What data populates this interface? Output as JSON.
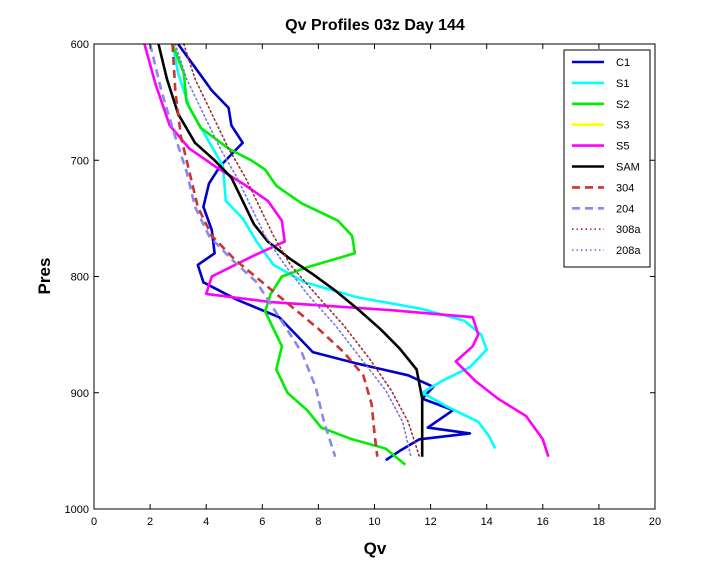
{
  "chart_data": {
    "type": "line",
    "title": "Qv Profiles 03z Day 144",
    "xlabel": "Qv",
    "ylabel": "Pres",
    "xlim": [
      0,
      20
    ],
    "ylim": [
      600,
      1000
    ],
    "y_reversed": true,
    "grid": false,
    "legend_position": "top-right",
    "x_ticks": [
      "0",
      "2",
      "4",
      "6",
      "8",
      "10",
      "12",
      "14",
      "16",
      "18",
      "20"
    ],
    "y_ticks": [
      "600",
      "700",
      "800",
      "900",
      "1000"
    ],
    "series": [
      {
        "name": "C1",
        "color": "#0000cc",
        "style": "solid",
        "points": [
          [
            3.0,
            600
          ],
          [
            3.6,
            620
          ],
          [
            4.2,
            640
          ],
          [
            4.8,
            655
          ],
          [
            4.9,
            670
          ],
          [
            5.3,
            685
          ],
          [
            4.9,
            695
          ],
          [
            4.5,
            705
          ],
          [
            4.1,
            720
          ],
          [
            3.9,
            740
          ],
          [
            4.2,
            760
          ],
          [
            4.3,
            780
          ],
          [
            3.7,
            790
          ],
          [
            3.9,
            805
          ],
          [
            5.1,
            820
          ],
          [
            6.6,
            835
          ],
          [
            7.2,
            850
          ],
          [
            7.8,
            865
          ],
          [
            9.4,
            875
          ],
          [
            11.2,
            885
          ],
          [
            12.1,
            895
          ],
          [
            11.7,
            905
          ],
          [
            12.8,
            915
          ],
          [
            11.9,
            930
          ],
          [
            13.4,
            935
          ],
          [
            11.6,
            940
          ],
          [
            10.9,
            950
          ],
          [
            10.4,
            958
          ]
        ]
      },
      {
        "name": "S1",
        "color": "#00ffff",
        "style": "solid",
        "points": [
          [
            2.8,
            600
          ],
          [
            3.0,
            625
          ],
          [
            3.4,
            655
          ],
          [
            4.0,
            680
          ],
          [
            4.6,
            705
          ],
          [
            4.7,
            735
          ],
          [
            5.3,
            750
          ],
          [
            5.8,
            770
          ],
          [
            6.4,
            790
          ],
          [
            7.5,
            805
          ],
          [
            9.4,
            818
          ],
          [
            11.7,
            828
          ],
          [
            13.2,
            838
          ],
          [
            13.8,
            850
          ],
          [
            14.0,
            863
          ],
          [
            13.4,
            878
          ],
          [
            12.4,
            890
          ],
          [
            11.7,
            900
          ],
          [
            12.6,
            912
          ],
          [
            13.7,
            925
          ],
          [
            14.1,
            938
          ],
          [
            14.3,
            948
          ]
        ]
      },
      {
        "name": "S2",
        "color": "#00ee00",
        "style": "solid",
        "points": [
          [
            2.8,
            600
          ],
          [
            3.2,
            625
          ],
          [
            3.3,
            650
          ],
          [
            3.8,
            672
          ],
          [
            4.8,
            690
          ],
          [
            5.6,
            700
          ],
          [
            6.1,
            708
          ],
          [
            6.5,
            722
          ],
          [
            7.4,
            737
          ],
          [
            8.7,
            752
          ],
          [
            9.2,
            765
          ],
          [
            9.3,
            780
          ],
          [
            7.6,
            792
          ],
          [
            6.7,
            800
          ],
          [
            6.3,
            815
          ],
          [
            6.1,
            830
          ],
          [
            6.4,
            845
          ],
          [
            6.7,
            860
          ],
          [
            6.5,
            880
          ],
          [
            6.9,
            900
          ],
          [
            7.6,
            915
          ],
          [
            8.1,
            930
          ],
          [
            9.2,
            940
          ],
          [
            10.4,
            948
          ],
          [
            11.1,
            962
          ]
        ]
      },
      {
        "name": "S3",
        "color": "#ffff00",
        "style": "solid",
        "points": []
      },
      {
        "name": "S5",
        "color": "#ff00ff",
        "style": "solid",
        "points": [
          [
            1.8,
            600
          ],
          [
            2.2,
            635
          ],
          [
            2.7,
            670
          ],
          [
            3.4,
            690
          ],
          [
            4.3,
            705
          ],
          [
            5.3,
            720
          ],
          [
            6.2,
            735
          ],
          [
            6.7,
            752
          ],
          [
            6.8,
            770
          ],
          [
            5.7,
            782
          ],
          [
            4.2,
            800
          ],
          [
            4.0,
            815
          ],
          [
            6.3,
            822
          ],
          [
            10.6,
            829
          ],
          [
            13.5,
            835
          ],
          [
            13.7,
            850
          ],
          [
            13.5,
            860
          ],
          [
            12.9,
            873
          ],
          [
            13.6,
            890
          ],
          [
            14.4,
            905
          ],
          [
            15.4,
            920
          ],
          [
            16.0,
            940
          ],
          [
            16.2,
            955
          ]
        ]
      },
      {
        "name": "SAM",
        "color": "#000000",
        "style": "solid",
        "points": [
          [
            2.3,
            600
          ],
          [
            2.6,
            630
          ],
          [
            3.0,
            660
          ],
          [
            3.6,
            685
          ],
          [
            4.3,
            700
          ],
          [
            4.9,
            715
          ],
          [
            5.3,
            735
          ],
          [
            5.7,
            755
          ],
          [
            6.2,
            770
          ],
          [
            7.0,
            785
          ],
          [
            7.8,
            798
          ],
          [
            8.6,
            812
          ],
          [
            9.4,
            828
          ],
          [
            10.2,
            845
          ],
          [
            10.9,
            862
          ],
          [
            11.5,
            880
          ],
          [
            11.7,
            905
          ],
          [
            11.7,
            930
          ],
          [
            11.7,
            955
          ]
        ]
      },
      {
        "name": "304",
        "color": "#cc3333",
        "style": "dashed",
        "points": [
          [
            2.8,
            600
          ],
          [
            2.9,
            640
          ],
          [
            3.1,
            680
          ],
          [
            3.4,
            710
          ],
          [
            3.7,
            740
          ],
          [
            4.2,
            765
          ],
          [
            5.0,
            785
          ],
          [
            6.0,
            805
          ],
          [
            7.0,
            825
          ],
          [
            8.0,
            845
          ],
          [
            8.9,
            865
          ],
          [
            9.6,
            885
          ],
          [
            9.9,
            910
          ],
          [
            10.0,
            935
          ],
          [
            10.1,
            955
          ]
        ]
      },
      {
        "name": "204",
        "color": "#8888ee",
        "style": "dashed",
        "points": [
          [
            2.0,
            600
          ],
          [
            2.4,
            640
          ],
          [
            2.9,
            680
          ],
          [
            3.3,
            710
          ],
          [
            3.6,
            740
          ],
          [
            4.1,
            765
          ],
          [
            4.9,
            785
          ],
          [
            5.8,
            805
          ],
          [
            6.6,
            835
          ],
          [
            7.4,
            865
          ],
          [
            7.9,
            895
          ],
          [
            8.2,
            925
          ],
          [
            8.6,
            955
          ]
        ]
      },
      {
        "name": "308a",
        "color": "#993333",
        "style": "dotted",
        "points": [
          [
            3.2,
            600
          ],
          [
            3.6,
            630
          ],
          [
            4.2,
            660
          ],
          [
            4.8,
            690
          ],
          [
            5.4,
            715
          ],
          [
            5.9,
            740
          ],
          [
            6.4,
            765
          ],
          [
            7.0,
            790
          ],
          [
            7.9,
            815
          ],
          [
            8.9,
            842
          ],
          [
            9.8,
            870
          ],
          [
            10.6,
            898
          ],
          [
            11.2,
            925
          ],
          [
            11.6,
            955
          ]
        ]
      },
      {
        "name": "208a",
        "color": "#7777dd",
        "style": "dotted",
        "points": [
          [
            2.9,
            600
          ],
          [
            3.3,
            630
          ],
          [
            3.9,
            660
          ],
          [
            4.5,
            690
          ],
          [
            5.1,
            715
          ],
          [
            5.6,
            740
          ],
          [
            6.1,
            765
          ],
          [
            6.8,
            790
          ],
          [
            7.6,
            815
          ],
          [
            8.6,
            842
          ],
          [
            9.5,
            870
          ],
          [
            10.4,
            898
          ],
          [
            11.0,
            925
          ],
          [
            11.3,
            955
          ]
        ]
      }
    ]
  }
}
